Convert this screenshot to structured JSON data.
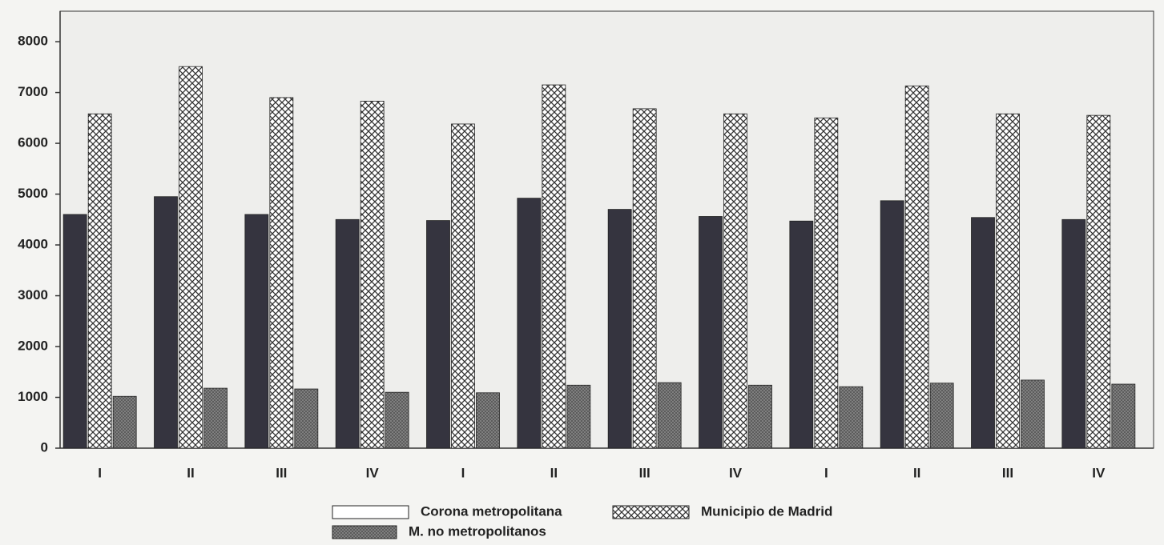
{
  "chart_data": {
    "type": "bar",
    "categories": [
      "I",
      "II",
      "III",
      "IV",
      "I",
      "II",
      "III",
      "IV",
      "I",
      "II",
      "III",
      "IV"
    ],
    "series": [
      {
        "name": "Corona metropolitana",
        "color": "#35343f",
        "hatch": "solid",
        "values": [
          4600,
          4950,
          4600,
          4500,
          4480,
          4920,
          4700,
          4560,
          4470,
          4870,
          4540,
          4500
        ]
      },
      {
        "name": "Municipio de Madrid",
        "color": "#ffffff",
        "hatch": "crosshatch",
        "values": [
          6580,
          7510,
          6900,
          6830,
          6380,
          7150,
          6680,
          6580,
          6500,
          7130,
          6580,
          6550
        ]
      },
      {
        "name": "M. no metropolitanos",
        "color": "#8a8a8a",
        "hatch": "dense",
        "values": [
          1020,
          1180,
          1165,
          1100,
          1090,
          1240,
          1290,
          1240,
          1210,
          1280,
          1340,
          1260
        ]
      }
    ],
    "ylim": [
      0,
      8600
    ],
    "yticks": [
      0,
      1000,
      2000,
      3000,
      4000,
      5000,
      6000,
      7000,
      8000
    ],
    "grid": false
  }
}
